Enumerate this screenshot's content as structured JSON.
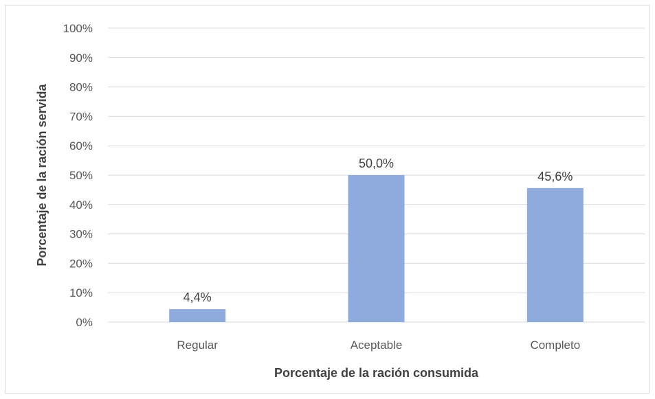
{
  "chart_data": {
    "type": "bar",
    "categories": [
      "Regular",
      "Aceptable",
      "Completo"
    ],
    "values": [
      4.4,
      50.0,
      45.6
    ],
    "data_labels": [
      "4,4%",
      "50,0%",
      "45,6%"
    ],
    "xlabel": "Porcentaje de la ración consumida",
    "ylabel": "Porcentaje de la ración servida",
    "ylim": [
      0,
      100
    ],
    "y_ticks": [
      0,
      10,
      20,
      30,
      40,
      50,
      60,
      70,
      80,
      90,
      100
    ],
    "y_tick_labels": [
      "0%",
      "10%",
      "20%",
      "30%",
      "40%",
      "50%",
      "60%",
      "70%",
      "80%",
      "90%",
      "100%"
    ],
    "grid": true,
    "legend": "none",
    "colors": {
      "bar": "#8faadc",
      "grid": "#d9d9d9"
    }
  }
}
